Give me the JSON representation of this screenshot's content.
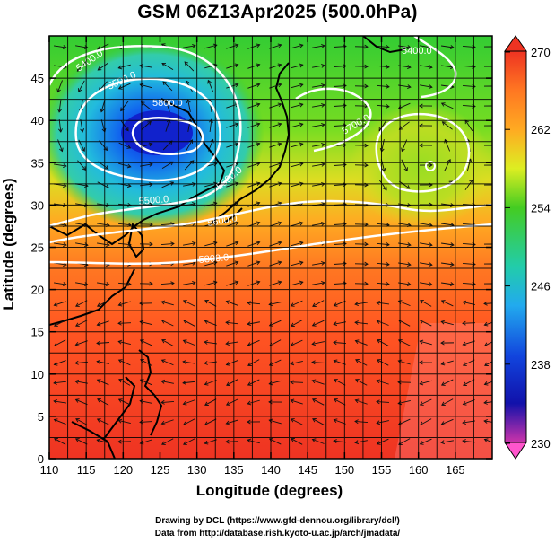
{
  "title": "GSM 06Z13Apr2025 (500.0hPa)",
  "xlabel": "Longitude (degrees)",
  "ylabel": "Latitude  (degrees)",
  "x_ticks": [
    "110",
    "115",
    "120",
    "125",
    "130",
    "135",
    "140",
    "145",
    "150",
    "155",
    "160",
    "165"
  ],
  "y_ticks": [
    "0",
    "5",
    "10",
    "15",
    "20",
    "25",
    "30",
    "35",
    "40",
    "45"
  ],
  "colorbar_ticks": [
    "270",
    "262",
    "254",
    "246",
    "238",
    "230"
  ],
  "contour_labels": [
    "5400.0",
    "5500.0",
    "5800.0",
    "5700.0",
    "5500.0",
    "5600.0",
    "5300.0",
    "5400.0",
    "5600.0"
  ],
  "credit_line1": "Drawing by DCL (https://www.gfd-dennou.org/library/dcl/)",
  "credit_line2": "Data from http://database.rish.kyoto-u.ac.jp/arch/jmadata/",
  "chart_data": {
    "type": "heatmap",
    "title": "GSM 06Z13Apr2025 (500.0hPa)",
    "xlabel": "Longitude (degrees)",
    "ylabel": "Latitude  (degrees)",
    "xlim": [
      110,
      170
    ],
    "ylim": [
      0,
      50
    ],
    "colorbar_range": [
      230,
      270
    ],
    "colorbar_tick_values": [
      270,
      262,
      254,
      246,
      238,
      230
    ],
    "cold_low_center": {
      "lon": 122,
      "lat": 40.5,
      "value": 236
    },
    "cut_off_low_center": {
      "lon": 161,
      "lat": 36,
      "value": 256
    },
    "geopotential_contours_m": [
      5300,
      5400,
      5500,
      5600,
      5700,
      5800
    ],
    "colors": {
      "min": "#cc33aa",
      "low": "#1111cc",
      "mid_low": "#22aaee",
      "mid": "#33cc22",
      "mid_high": "#ddee22",
      "high": "#ee8822",
      "max": "#ee3322"
    }
  }
}
